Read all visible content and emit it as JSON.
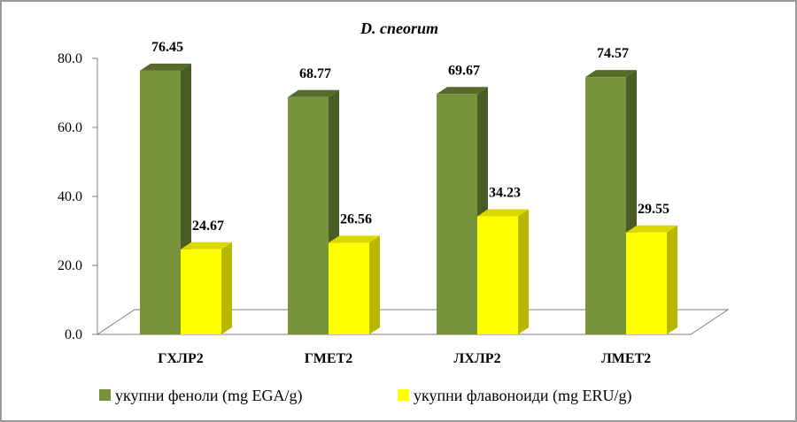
{
  "chart_data": {
    "type": "bar",
    "title": "D. cneorum",
    "categories": [
      "ГХЛР2",
      "ГМЕТ2",
      "ЛХЛР2",
      "ЛМЕТ2"
    ],
    "series": [
      {
        "name": "укупни феноли (mg EGA/g)",
        "values": [
          76.45,
          68.77,
          69.67,
          74.57
        ],
        "value_labels": [
          "76.45",
          "68.77",
          "69.67",
          "74.57"
        ],
        "color": "#77933c"
      },
      {
        "name": "укупни флавоноиди (mg ERU/g)",
        "values": [
          24.67,
          26.56,
          34.23,
          29.55
        ],
        "value_labels": [
          "24.67",
          "26.56",
          "34.23",
          "29.55"
        ],
        "color": "#ffff00"
      }
    ],
    "ylim": [
      0,
      80
    ],
    "yticks": [
      "0.0",
      "20.0",
      "40.0",
      "60.0",
      "80.0"
    ],
    "ytick_values": [
      0,
      20,
      40,
      60,
      80
    ],
    "grid": false,
    "legend_position": "bottom",
    "three_d": true
  }
}
